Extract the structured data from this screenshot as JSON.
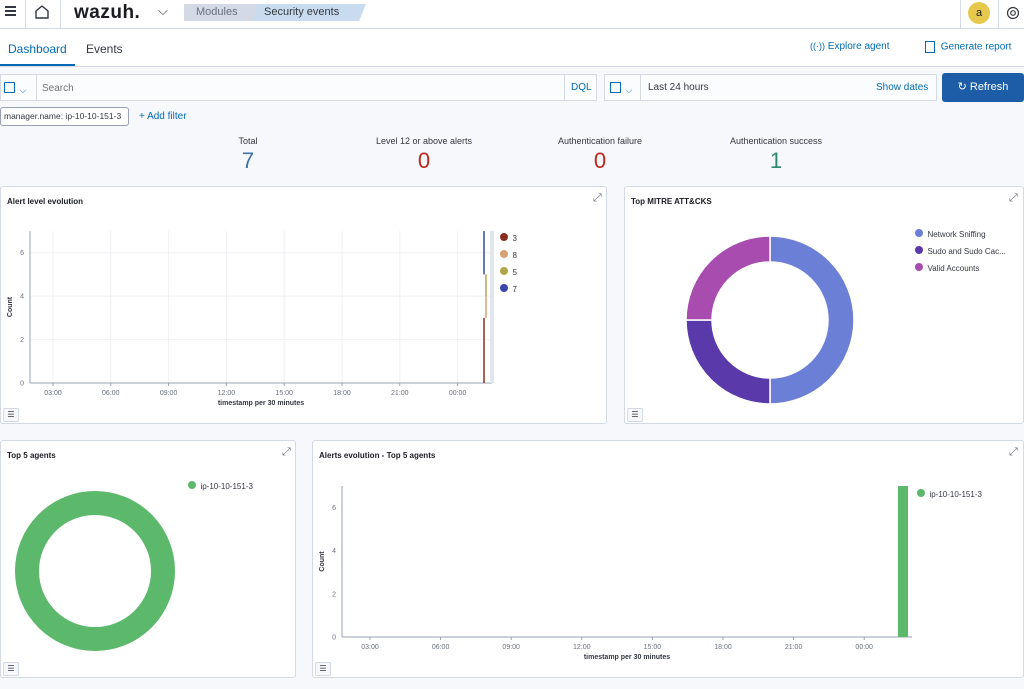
{
  "topbar": {
    "brand": "wazuh.",
    "breadcrumbs": [
      "Modules",
      "Security events"
    ],
    "avatar": "a"
  },
  "tabs": [
    {
      "label": "Dashboard",
      "active": true
    },
    {
      "label": "Events",
      "active": false
    }
  ],
  "actions": {
    "explore_agent": "Explore agent",
    "generate_report": "Generate report"
  },
  "search": {
    "placeholder": "Search",
    "language": "DQL",
    "date_range": "Last 24 hours",
    "show_dates": "Show dates",
    "refresh": "Refresh"
  },
  "filters": {
    "pill": "manager.name: ip-10-10-151-3",
    "add_filter": "+ Add filter"
  },
  "stats": [
    {
      "label": "Total",
      "value": "7",
      "color": "#3f74a8"
    },
    {
      "label": "Level 12 or above alerts",
      "value": "0",
      "color": "#bd271e"
    },
    {
      "label": "Authentication failure",
      "value": "0",
      "color": "#bd271e"
    },
    {
      "label": "Authentication success",
      "value": "1",
      "color": "#2f8a6b"
    }
  ],
  "panels": {
    "alert_level": {
      "title": "Alert level evolution",
      "legend": [
        {
          "label": "3",
          "color": "#8b2e1f"
        },
        {
          "label": "8",
          "color": "#d4a373"
        },
        {
          "label": "5",
          "color": "#b4a44a"
        },
        {
          "label": "7",
          "color": "#3848a8"
        }
      ]
    },
    "mitre": {
      "title": "Top MITRE ATT&CKS",
      "legend": [
        {
          "label": "Network Sniffing",
          "color": "#6b7fd7"
        },
        {
          "label": "Sudo and Sudo Cac...",
          "color": "#5a3aab"
        },
        {
          "label": "Valid Accounts",
          "color": "#a84cb0"
        }
      ]
    },
    "top_agents": {
      "title": "Top 5 agents",
      "legend": [
        {
          "label": "ip-10-10-151-3",
          "color": "#5cb86a"
        }
      ]
    },
    "agents_evolution": {
      "title": "Alerts evolution - Top 5 agents",
      "legend": [
        {
          "label": "ip-10-10-151-3",
          "color": "#5cb86a"
        }
      ]
    }
  },
  "chart_data": [
    {
      "type": "line",
      "title": "Alert level evolution",
      "xlabel": "timestamp per 30 minutes",
      "ylabel": "Count",
      "x_ticks": [
        "03:00",
        "06:00",
        "09:00",
        "12:00",
        "15:00",
        "18:00",
        "21:00",
        "00:00"
      ],
      "y_ticks": [
        0,
        2,
        4,
        6
      ],
      "ylim": [
        0,
        7
      ],
      "series": [
        {
          "name": "3",
          "values": [
            3
          ]
        },
        {
          "name": "8",
          "values": [
            1
          ]
        },
        {
          "name": "5",
          "values": [
            1
          ]
        },
        {
          "name": "7",
          "values": [
            2
          ]
        }
      ]
    },
    {
      "type": "pie",
      "title": "Top MITRE ATT&CKS",
      "categories": [
        "Network Sniffing",
        "Sudo and Sudo Cac...",
        "Valid Accounts"
      ],
      "values": [
        2,
        1,
        1
      ]
    },
    {
      "type": "pie",
      "title": "Top 5 agents",
      "categories": [
        "ip-10-10-151-3"
      ],
      "values": [
        7
      ]
    },
    {
      "type": "bar",
      "title": "Alerts evolution - Top 5 agents",
      "xlabel": "timestamp per 30 minutes",
      "ylabel": "Count",
      "x_ticks": [
        "03:00",
        "06:00",
        "09:00",
        "12:00",
        "15:00",
        "18:00",
        "21:00",
        "00:00"
      ],
      "y_ticks": [
        0,
        2,
        4,
        6
      ],
      "ylim": [
        0,
        7
      ],
      "series": [
        {
          "name": "ip-10-10-151-3",
          "values": [
            7
          ]
        }
      ]
    }
  ]
}
